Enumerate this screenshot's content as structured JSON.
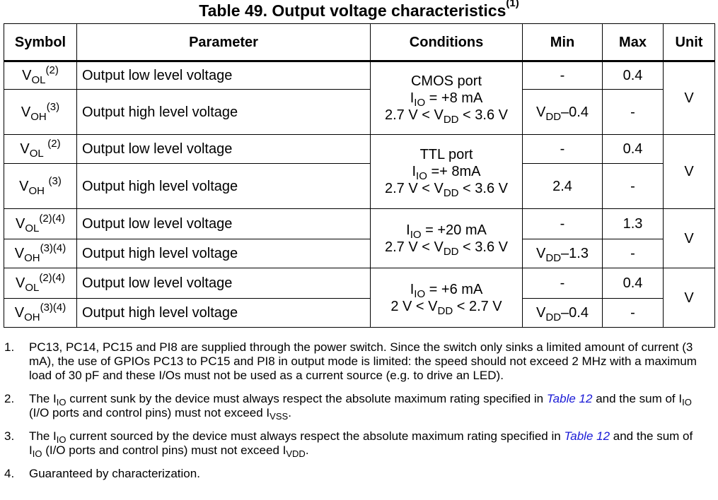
{
  "title": {
    "text": "Table 49. Output voltage characteristics",
    "sup": "(1)"
  },
  "table": {
    "headers": [
      "Symbol",
      "Parameter",
      "Conditions",
      "Min",
      "Max",
      "Unit"
    ],
    "groups": [
      {
        "condition": [
          "CMOS port",
          "I|IO| = +8 mA",
          "2.7 V < V|DD| < 3.6 V"
        ],
        "unit": "V",
        "rows": [
          {
            "sym": "V",
            "sym_sub": "OL",
            "sym_sup": "(2)",
            "param": "Output low level voltage",
            "min": "-",
            "max": "0.4"
          },
          {
            "sym": "V",
            "sym_sub": "OH",
            "sym_sup": "(3)",
            "param": "Output high level voltage",
            "min_a": "V",
            "min_sub": "DD",
            "min_b": "–0.4",
            "max": "-"
          }
        ]
      },
      {
        "condition": [
          "TTL port",
          "I|IO| =+ 8mA",
          "2.7 V < V|DD| < 3.6 V"
        ],
        "unit": "V",
        "rows": [
          {
            "sym": "V",
            "sym_sub": "OL",
            "sym_sup": "(2)",
            "param": "Output low level voltage",
            "min": "-",
            "max": "0.4"
          },
          {
            "sym": "V",
            "sym_sub": "OH",
            "sym_sup": "(3)",
            "param": "Output high level voltage",
            "min": "2.4",
            "max": "-"
          }
        ]
      },
      {
        "condition": [
          "I|IO| = +20 mA",
          "2.7 V < V|DD| < 3.6 V"
        ],
        "unit": "V",
        "rows": [
          {
            "sym": "V",
            "sym_sub": "OL",
            "sym_sup": "(2)(4)",
            "param": "Output low level voltage",
            "min": "-",
            "max": "1.3"
          },
          {
            "sym": "V",
            "sym_sub": "OH",
            "sym_sup": "(3)(4)",
            "param": "Output high level voltage",
            "min_a": "V",
            "min_sub": "DD",
            "min_b": "–1.3",
            "max": "-"
          }
        ]
      },
      {
        "condition": [
          "I|IO| = +6 mA",
          "2 V < V|DD| < 2.7 V"
        ],
        "unit": "V",
        "rows": [
          {
            "sym": "V",
            "sym_sub": "OL",
            "sym_sup": "(2)(4)",
            "param": "Output low level voltage",
            "min": "-",
            "max": "0.4"
          },
          {
            "sym": "V",
            "sym_sub": "OH",
            "sym_sup": "(3)(4)",
            "param": "Output high level voltage",
            "min_a": "V",
            "min_sub": "DD",
            "min_b": "–0.4",
            "max": "-"
          }
        ]
      }
    ]
  },
  "notes": {
    "n1": {
      "num": "1.",
      "text": "PC13, PC14, PC15 and PI8 are supplied through the power switch. Since the switch only sinks a limited amount of current (3 mA), the use of GPIOs PC13 to PC15 and PI8 in output mode is limited: the speed should not exceed 2 MHz with a maximum load of 30 pF and these I/Os must not be used as a current source (e.g. to drive an LED)."
    },
    "n2": {
      "num": "2.",
      "t1": "The I",
      "s1": "IO",
      "t2": " current sunk by the device must always respect the absolute maximum rating specified in ",
      "link": "Table 12",
      "t3": " and the sum of I",
      "s2": "IO",
      "t4": " (I/O ports and control pins) must not exceed I",
      "s3": "VSS",
      "t5": "."
    },
    "n3": {
      "num": "3.",
      "t1": "The I",
      "s1": "IO",
      "t2": " current sourced by the device must always respect the absolute maximum rating specified in ",
      "link": "Table 12",
      "t3": " and the sum of I",
      "s2": "IO",
      "t4": " (I/O ports and control pins) must not exceed I",
      "s3": "VDD",
      "t5": "."
    },
    "n4": {
      "num": "4.",
      "text": "Guaranteed by characterization."
    }
  }
}
